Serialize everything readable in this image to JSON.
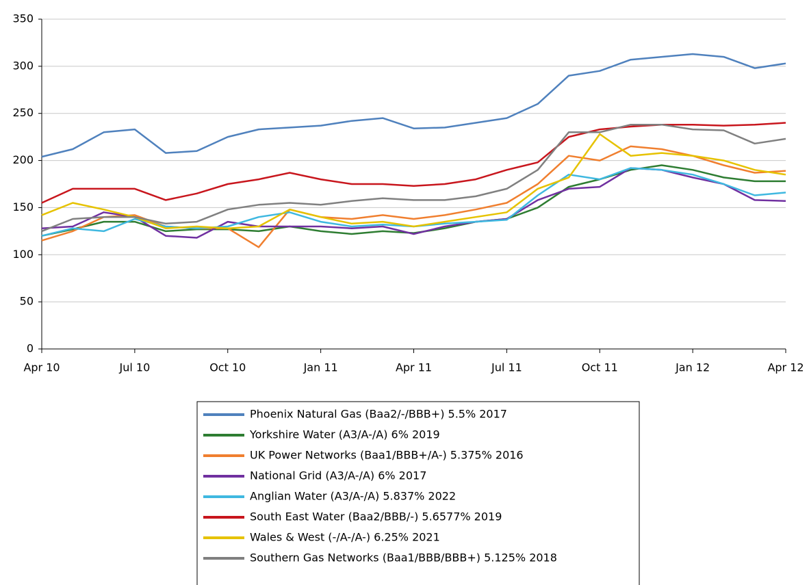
{
  "chart_data": {
    "type": "line",
    "x": [
      "2010-04",
      "2010-05",
      "2010-06",
      "2010-07",
      "2010-08",
      "2010-09",
      "2010-10",
      "2010-11",
      "2010-12",
      "2011-01",
      "2011-02",
      "2011-03",
      "2011-04",
      "2011-05",
      "2011-06",
      "2011-07",
      "2011-08",
      "2011-09",
      "2011-10",
      "2011-11",
      "2011-12",
      "2012-01",
      "2012-02",
      "2012-03",
      "2012-04"
    ],
    "xlim": [
      "2010-04",
      "2012-04"
    ],
    "xticks": [
      {
        "value": "2010-04",
        "label": "Apr 10"
      },
      {
        "value": "2010-07",
        "label": "Jul 10"
      },
      {
        "value": "2010-10",
        "label": "Oct 10"
      },
      {
        "value": "2011-01",
        "label": "Jan 11"
      },
      {
        "value": "2011-04",
        "label": "Apr 11"
      },
      {
        "value": "2011-07",
        "label": "Jul 11"
      },
      {
        "value": "2011-10",
        "label": "Oct 11"
      },
      {
        "value": "2012-01",
        "label": "Jan 12"
      },
      {
        "value": "2012-04",
        "label": "Apr 12"
      }
    ],
    "ylim": [
      0,
      350
    ],
    "yticks": [
      0,
      50,
      100,
      150,
      200,
      250,
      300,
      350
    ],
    "grid": true,
    "legend": "bottom",
    "series": [
      {
        "name": "Phoenix Natural Gas (Baa2/-/BBB+) 5.5% 2017",
        "color": "#4f81bd",
        "values": [
          204,
          212,
          230,
          233,
          208,
          210,
          225,
          233,
          235,
          237,
          242,
          245,
          234,
          235,
          240,
          245,
          260,
          290,
          295,
          307,
          310,
          313,
          310,
          298,
          303
        ]
      },
      {
        "name": "Yorkshire Water (A3/A-/A) 6% 2019",
        "color": "#2e7d32",
        "values": [
          120,
          127,
          135,
          135,
          125,
          127,
          127,
          125,
          130,
          125,
          122,
          125,
          123,
          128,
          135,
          138,
          150,
          172,
          180,
          190,
          195,
          190,
          182,
          178,
          178
        ]
      },
      {
        "name": "UK Power Networks (Baa1/BBB+/A-) 5.375% 2016",
        "color": "#f07f2f",
        "values": [
          115,
          125,
          140,
          142,
          130,
          128,
          128,
          108,
          148,
          140,
          138,
          142,
          138,
          142,
          148,
          155,
          175,
          205,
          200,
          215,
          212,
          205,
          195,
          187,
          189
        ]
      },
      {
        "name": "National Grid (A3/A-/A) 6% 2017",
        "color": "#7030a0",
        "values": [
          128,
          130,
          145,
          140,
          120,
          118,
          135,
          130,
          130,
          130,
          128,
          130,
          122,
          130,
          135,
          138,
          158,
          170,
          172,
          192,
          190,
          182,
          175,
          158,
          157
        ]
      },
      {
        "name": "Anglian Water (A3/A-/A) 5.837% 2022",
        "color": "#3fb8e0",
        "values": [
          120,
          128,
          125,
          138,
          130,
          128,
          130,
          140,
          145,
          135,
          130,
          132,
          130,
          133,
          135,
          137,
          163,
          185,
          180,
          192,
          190,
          185,
          175,
          163,
          166
        ]
      },
      {
        "name": "South East Water (Baa2/BBB/-) 5.6577% 2019",
        "color": "#c8161d",
        "values": [
          155,
          170,
          170,
          170,
          158,
          165,
          175,
          180,
          187,
          180,
          175,
          175,
          173,
          175,
          180,
          190,
          198,
          225,
          233,
          236,
          238,
          238,
          237,
          238,
          240
        ]
      },
      {
        "name": "Wales & West (-/A-/A-) 6.25% 2021",
        "color": "#e6c200",
        "values": [
          142,
          155,
          148,
          140,
          128,
          130,
          128,
          130,
          148,
          140,
          133,
          135,
          130,
          135,
          140,
          145,
          170,
          182,
          228,
          205,
          208,
          205,
          200,
          190,
          185
        ]
      },
      {
        "name": "Southern Gas Networks (Baa1/BBB/BBB+) 5.125% 2018",
        "color": "#808080",
        "values": [
          125,
          138,
          140,
          140,
          133,
          135,
          148,
          153,
          155,
          153,
          157,
          160,
          158,
          158,
          162,
          170,
          190,
          230,
          230,
          238,
          238,
          233,
          232,
          218,
          223
        ]
      }
    ]
  }
}
